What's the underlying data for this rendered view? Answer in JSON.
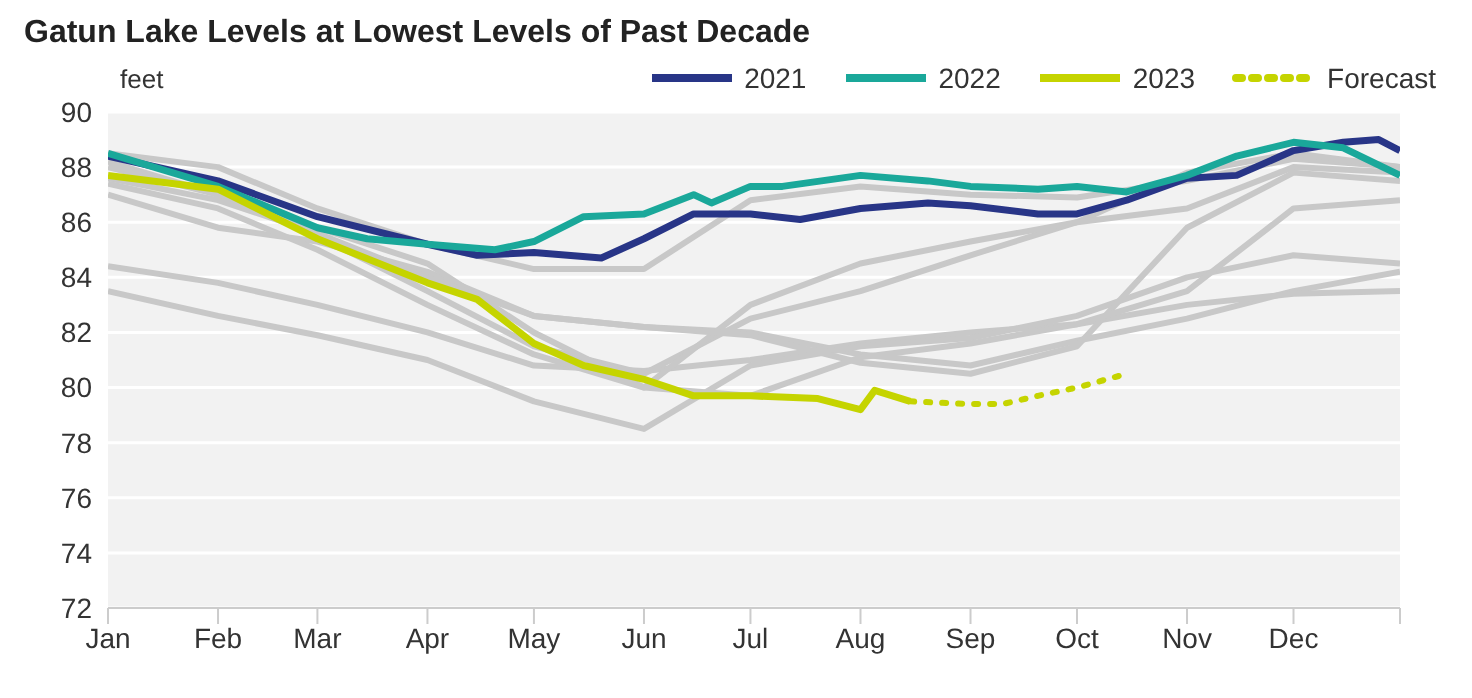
{
  "chart_data": {
    "type": "line",
    "title": "Gatun Lake Levels at Lowest Levels of Past Decade",
    "ylabel": "feet",
    "xlim": [
      "--01-01",
      "--12-31"
    ],
    "xticks": [
      {
        "value": "--01-01",
        "label": "Jan"
      },
      {
        "value": "--02-01",
        "label": "Feb"
      },
      {
        "value": "--03-01",
        "label": "Mar"
      },
      {
        "value": "--04-01",
        "label": "Apr"
      },
      {
        "value": "--05-01",
        "label": "May"
      },
      {
        "value": "--06-01",
        "label": "Jun"
      },
      {
        "value": "--07-01",
        "label": "Jul"
      },
      {
        "value": "--08-01",
        "label": "Aug"
      },
      {
        "value": "--09-01",
        "label": "Sep"
      },
      {
        "value": "--10-01",
        "label": "Oct"
      },
      {
        "value": "--11-01",
        "label": "Nov"
      },
      {
        "value": "--12-01",
        "label": "Dec"
      },
      {
        "value": "--12-31",
        "label": null
      }
    ],
    "ylim": [
      72,
      90
    ],
    "yticks": [
      72,
      74,
      76,
      78,
      80,
      82,
      84,
      86,
      88,
      90
    ],
    "grid": "y",
    "legend": "top right",
    "marker": "none",
    "line_style": "solid",
    "x": [
      "--01-01",
      "--02-01",
      "--03-01",
      "--04-01",
      "--05-01",
      "--06-01",
      "--07-01",
      "--08-01",
      "--09-01",
      "--10-01",
      "--11-01",
      "--12-01",
      "--12-31"
    ],
    "series": [
      {
        "color": "#c8c8c8",
        "values": [
          88.5,
          88.0,
          86.5,
          85.2,
          84.3,
          84.3,
          86.8,
          87.3,
          87.0,
          86.9,
          87.5,
          88.3,
          88.0
        ]
      },
      {
        "color": "#c8c8c8",
        "values": [
          87.0,
          85.8,
          85.3,
          84.2,
          82.6,
          82.2,
          82.0,
          81.2,
          80.8,
          81.7,
          82.5,
          83.5,
          84.2
        ]
      },
      {
        "color": "#c8c8c8",
        "values": [
          84.4,
          83.8,
          83.0,
          82.0,
          80.8,
          80.6,
          81.0,
          81.6,
          82.0,
          82.3,
          83.0,
          83.4,
          83.5
        ]
      },
      {
        "color": "#c8c8c8",
        "values": [
          83.5,
          82.6,
          81.9,
          81.0,
          79.5,
          78.5,
          80.8,
          81.5,
          81.8,
          82.6,
          84.0,
          84.8,
          84.5
        ]
      },
      {
        "color": "#c8c8c8",
        "values": [
          88.2,
          87.0,
          85.5,
          83.5,
          81.5,
          80.5,
          82.5,
          83.5,
          84.8,
          86.0,
          87.8,
          88.5,
          88.0
        ]
      },
      {
        "color": "#c8c8c8",
        "values": [
          88.0,
          87.0,
          85.8,
          84.5,
          82.0,
          80.0,
          83.0,
          84.5,
          85.3,
          86.0,
          86.5,
          88.0,
          87.8
        ]
      },
      {
        "color": "#c8c8c8",
        "values": [
          87.6,
          86.8,
          85.6,
          84.0,
          82.6,
          82.2,
          81.9,
          80.9,
          80.5,
          81.5,
          85.8,
          87.8,
          87.5
        ]
      },
      {
        "color": "#c8c8c8",
        "values": [
          87.4,
          86.5,
          85.0,
          83.0,
          81.2,
          80.0,
          79.7,
          81.1,
          81.6,
          82.3,
          83.5,
          86.5,
          86.8
        ]
      },
      {
        "name": "2021",
        "color": "#283587",
        "x": [
          "--01-01",
          "--02-01",
          "--03-01",
          "--04-01",
          "--04-15",
          "--05-01",
          "--05-20",
          "--06-01",
          "--06-15",
          "--07-01",
          "--07-15",
          "--08-01",
          "--08-20",
          "--09-01",
          "--09-20",
          "--10-01",
          "--10-15",
          "--11-01",
          "--11-15",
          "--12-01",
          "--12-15",
          "--12-25",
          "--12-31"
        ],
        "values": [
          88.4,
          87.5,
          86.2,
          85.2,
          84.8,
          84.9,
          84.7,
          85.4,
          86.3,
          86.3,
          86.1,
          86.5,
          86.7,
          86.6,
          86.3,
          86.3,
          86.8,
          87.6,
          87.7,
          88.6,
          88.9,
          89.0,
          88.6
        ]
      },
      {
        "name": "2022",
        "color": "#1aa89a",
        "x": [
          "--01-01",
          "--02-01",
          "--03-01",
          "--03-15",
          "--04-01",
          "--04-20",
          "--05-01",
          "--05-15",
          "--06-01",
          "--06-15",
          "--06-20",
          "--07-01",
          "--07-10",
          "--08-01",
          "--08-20",
          "--09-01",
          "--09-20",
          "--10-01",
          "--10-15",
          "--11-01",
          "--11-15",
          "--12-01",
          "--12-15",
          "--12-31"
        ],
        "values": [
          88.5,
          87.3,
          85.8,
          85.4,
          85.2,
          85.0,
          85.3,
          86.2,
          86.3,
          87.0,
          86.7,
          87.3,
          87.3,
          87.7,
          87.5,
          87.3,
          87.2,
          87.3,
          87.1,
          87.7,
          88.4,
          88.9,
          88.7,
          87.7
        ]
      },
      {
        "name": "2023",
        "color": "#c5d400",
        "x": [
          "--01-01",
          "--02-01",
          "--03-01",
          "--04-01",
          "--04-15",
          "--05-01",
          "--05-15",
          "--06-01",
          "--06-15",
          "--07-01",
          "--07-20",
          "--08-01",
          "--08-05",
          "--08-15"
        ],
        "values": [
          87.7,
          87.2,
          85.4,
          83.8,
          83.2,
          81.6,
          80.8,
          80.3,
          79.7,
          79.7,
          79.6,
          79.2,
          79.9,
          79.5
        ]
      },
      {
        "name": "Forecast",
        "color": "#c5d400",
        "line_style": "dotted",
        "x": [
          "--08-15",
          "--09-01",
          "--09-10",
          "--09-20",
          "--10-01",
          "--10-15"
        ],
        "values": [
          79.5,
          79.4,
          79.4,
          79.7,
          80.0,
          80.5
        ]
      }
    ]
  }
}
